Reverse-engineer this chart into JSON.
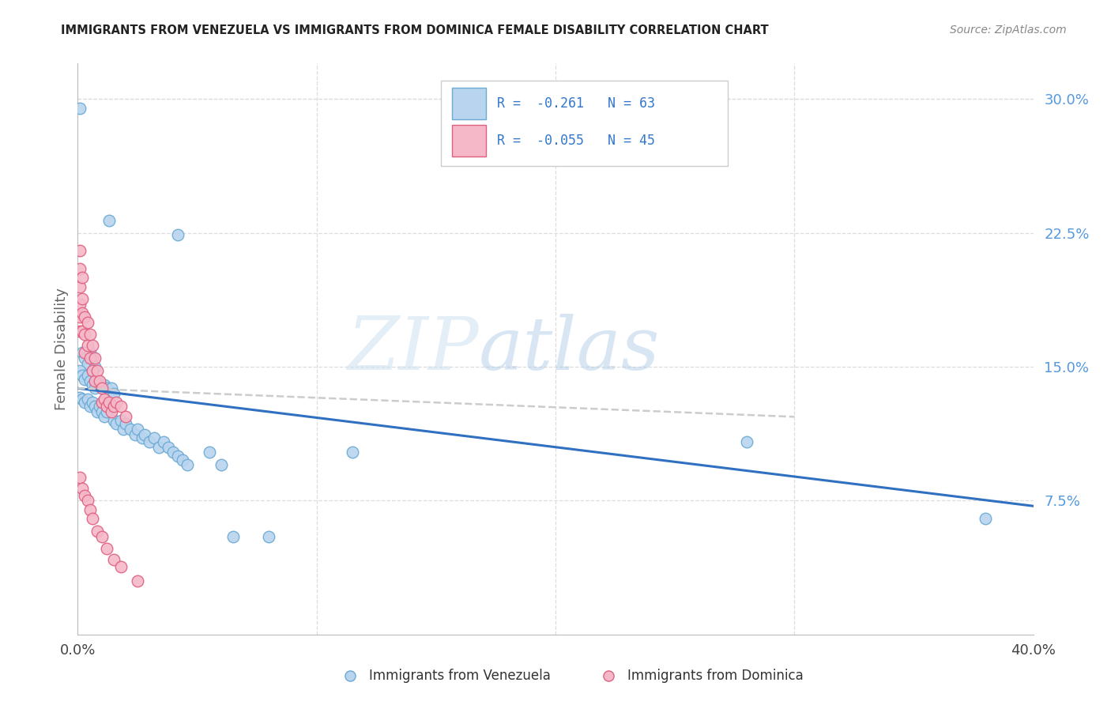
{
  "title": "IMMIGRANTS FROM VENEZUELA VS IMMIGRANTS FROM DOMINICA FEMALE DISABILITY CORRELATION CHART",
  "source": "Source: ZipAtlas.com",
  "ylabel": "Female Disability",
  "right_yticks": [
    "30.0%",
    "22.5%",
    "15.0%",
    "7.5%"
  ],
  "right_ytick_vals": [
    0.3,
    0.225,
    0.15,
    0.075
  ],
  "legend_label1": "Immigrants from Venezuela",
  "legend_label2": "Immigrants from Dominica",
  "color_venezuela_face": "#b8d4ee",
  "color_venezuela_edge": "#6aaad4",
  "color_dominica_face": "#f5b8c8",
  "color_dominica_edge": "#e06080",
  "color_line_blue": "#3070c0",
  "color_line_pink": "#e08090",
  "xlim": [
    0.0,
    0.4
  ],
  "ylim": [
    0.0,
    0.32
  ],
  "ven_line_x0": 0.0,
  "ven_line_y0": 0.138,
  "ven_line_x1": 0.4,
  "ven_line_y1": 0.072,
  "dom_line_x0": 0.0,
  "dom_line_y0": 0.138,
  "dom_line_x1": 0.3,
  "dom_line_y1": 0.122,
  "venezuela_points": [
    [
      0.001,
      0.295
    ],
    [
      0.013,
      0.232
    ],
    [
      0.042,
      0.224
    ],
    [
      0.002,
      0.158
    ],
    [
      0.003,
      0.155
    ],
    [
      0.004,
      0.152
    ],
    [
      0.005,
      0.158
    ],
    [
      0.006,
      0.155
    ],
    [
      0.007,
      0.15
    ],
    [
      0.001,
      0.148
    ],
    [
      0.002,
      0.145
    ],
    [
      0.003,
      0.143
    ],
    [
      0.004,
      0.145
    ],
    [
      0.005,
      0.142
    ],
    [
      0.006,
      0.14
    ],
    [
      0.007,
      0.138
    ],
    [
      0.008,
      0.142
    ],
    [
      0.009,
      0.14
    ],
    [
      0.01,
      0.138
    ],
    [
      0.011,
      0.14
    ],
    [
      0.012,
      0.138
    ],
    [
      0.013,
      0.135
    ],
    [
      0.014,
      0.138
    ],
    [
      0.015,
      0.135
    ],
    [
      0.001,
      0.133
    ],
    [
      0.002,
      0.132
    ],
    [
      0.003,
      0.13
    ],
    [
      0.004,
      0.132
    ],
    [
      0.005,
      0.128
    ],
    [
      0.006,
      0.13
    ],
    [
      0.007,
      0.128
    ],
    [
      0.008,
      0.125
    ],
    [
      0.009,
      0.128
    ],
    [
      0.01,
      0.125
    ],
    [
      0.011,
      0.122
    ],
    [
      0.012,
      0.125
    ],
    [
      0.015,
      0.12
    ],
    [
      0.016,
      0.118
    ],
    [
      0.018,
      0.12
    ],
    [
      0.019,
      0.115
    ],
    [
      0.02,
      0.118
    ],
    [
      0.022,
      0.115
    ],
    [
      0.024,
      0.112
    ],
    [
      0.025,
      0.115
    ],
    [
      0.027,
      0.11
    ],
    [
      0.028,
      0.112
    ],
    [
      0.03,
      0.108
    ],
    [
      0.032,
      0.11
    ],
    [
      0.034,
      0.105
    ],
    [
      0.036,
      0.108
    ],
    [
      0.038,
      0.105
    ],
    [
      0.04,
      0.102
    ],
    [
      0.042,
      0.1
    ],
    [
      0.044,
      0.098
    ],
    [
      0.046,
      0.095
    ],
    [
      0.055,
      0.102
    ],
    [
      0.06,
      0.095
    ],
    [
      0.065,
      0.055
    ],
    [
      0.08,
      0.055
    ],
    [
      0.115,
      0.102
    ],
    [
      0.28,
      0.108
    ],
    [
      0.38,
      0.065
    ]
  ],
  "dominica_points": [
    [
      0.001,
      0.215
    ],
    [
      0.001,
      0.205
    ],
    [
      0.001,
      0.195
    ],
    [
      0.001,
      0.185
    ],
    [
      0.001,
      0.178
    ],
    [
      0.001,
      0.17
    ],
    [
      0.002,
      0.2
    ],
    [
      0.002,
      0.188
    ],
    [
      0.002,
      0.18
    ],
    [
      0.002,
      0.17
    ],
    [
      0.003,
      0.178
    ],
    [
      0.003,
      0.168
    ],
    [
      0.003,
      0.158
    ],
    [
      0.004,
      0.175
    ],
    [
      0.004,
      0.162
    ],
    [
      0.005,
      0.168
    ],
    [
      0.005,
      0.155
    ],
    [
      0.006,
      0.162
    ],
    [
      0.006,
      0.148
    ],
    [
      0.007,
      0.155
    ],
    [
      0.007,
      0.142
    ],
    [
      0.008,
      0.148
    ],
    [
      0.009,
      0.142
    ],
    [
      0.01,
      0.138
    ],
    [
      0.01,
      0.13
    ],
    [
      0.011,
      0.132
    ],
    [
      0.012,
      0.128
    ],
    [
      0.013,
      0.13
    ],
    [
      0.014,
      0.125
    ],
    [
      0.015,
      0.128
    ],
    [
      0.016,
      0.13
    ],
    [
      0.018,
      0.128
    ],
    [
      0.02,
      0.122
    ],
    [
      0.001,
      0.088
    ],
    [
      0.002,
      0.082
    ],
    [
      0.003,
      0.078
    ],
    [
      0.004,
      0.075
    ],
    [
      0.005,
      0.07
    ],
    [
      0.006,
      0.065
    ],
    [
      0.008,
      0.058
    ],
    [
      0.01,
      0.055
    ],
    [
      0.012,
      0.048
    ],
    [
      0.015,
      0.042
    ],
    [
      0.018,
      0.038
    ],
    [
      0.025,
      0.03
    ]
  ]
}
